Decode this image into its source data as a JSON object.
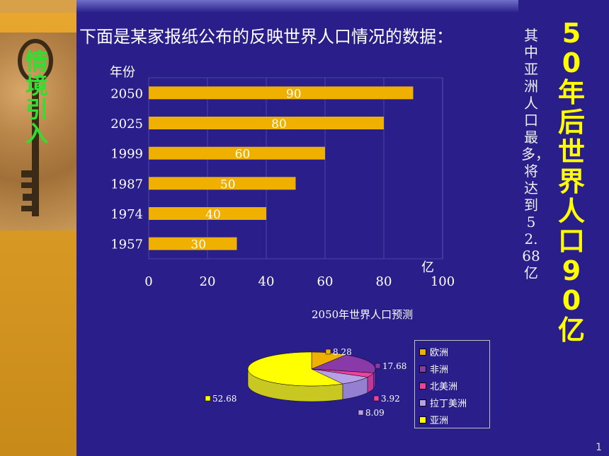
{
  "sidebar": {
    "vertical_label": "情境引入"
  },
  "header": {
    "title": "下面是某家报纸公布的反映世界人口情况的数据："
  },
  "side_note": {
    "text": "其中亚洲人口最多，将达到52.68亿"
  },
  "highlight": {
    "text": "50年后世界人口90亿"
  },
  "page": {
    "number": "1"
  },
  "colors": {
    "background": "#2a1f8a",
    "bar": "#f0b000",
    "accent_yellow": "#ffff00",
    "green_text": "#33dd33"
  },
  "chart_data": [
    {
      "type": "bar",
      "orientation": "horizontal",
      "ylabel": "年份",
      "xlabel": "亿",
      "categories": [
        "2050",
        "2025",
        "1999",
        "1987",
        "1974",
        "1957"
      ],
      "values": [
        90,
        80,
        60,
        50,
        40,
        30
      ],
      "data_labels": [
        "90",
        "80",
        "60",
        "50",
        "40",
        "30"
      ],
      "xlim": [
        0,
        100
      ],
      "xticks": [
        "0",
        "20",
        "40",
        "60",
        "80",
        "100"
      ]
    },
    {
      "type": "pie",
      "title": "2050年世界人口预测",
      "categories": [
        "欧洲",
        "非洲",
        "北美洲",
        "拉丁美洲",
        "亚洲"
      ],
      "values": [
        8.28,
        17.68,
        3.92,
        8.09,
        52.68
      ],
      "data_labels": [
        "8.28",
        "17.68",
        "3.92",
        "8.09",
        "52.68"
      ],
      "colors": [
        "#f0b000",
        "#8a3aa8",
        "#f040a0",
        "#b8a0e8",
        "#ffff00"
      ]
    }
  ]
}
